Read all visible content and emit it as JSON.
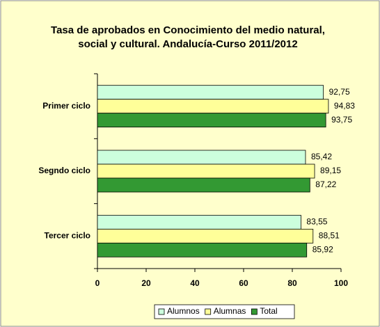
{
  "chart_data": {
    "type": "hbar",
    "title": "Tasa de aprobados en Conocimiento del medio natural, social y cultural. Andalucía-Curso 2011/2012",
    "categories": [
      "Primer ciclo",
      "Segndo ciclo",
      "Tercer ciclo"
    ],
    "series": [
      {
        "name": "Alumnos",
        "color": "#ccffdd",
        "values": [
          92.75,
          85.42,
          83.55
        ],
        "value_labels": [
          "92,75",
          "85,42",
          "83,55"
        ]
      },
      {
        "name": "Alumnas",
        "color": "#ffff99",
        "values": [
          94.83,
          89.15,
          88.51
        ],
        "value_labels": [
          "94,83",
          "89,15",
          "88,51"
        ]
      },
      {
        "name": "Total",
        "color": "#339933",
        "values": [
          93.75,
          87.22,
          85.92
        ],
        "value_labels": [
          "93,75",
          "87,22",
          "85,92"
        ]
      }
    ],
    "xlim": [
      0,
      100
    ],
    "xticks": [
      0,
      20,
      40,
      60,
      80,
      100
    ],
    "grid": false,
    "legend": "bottom"
  }
}
